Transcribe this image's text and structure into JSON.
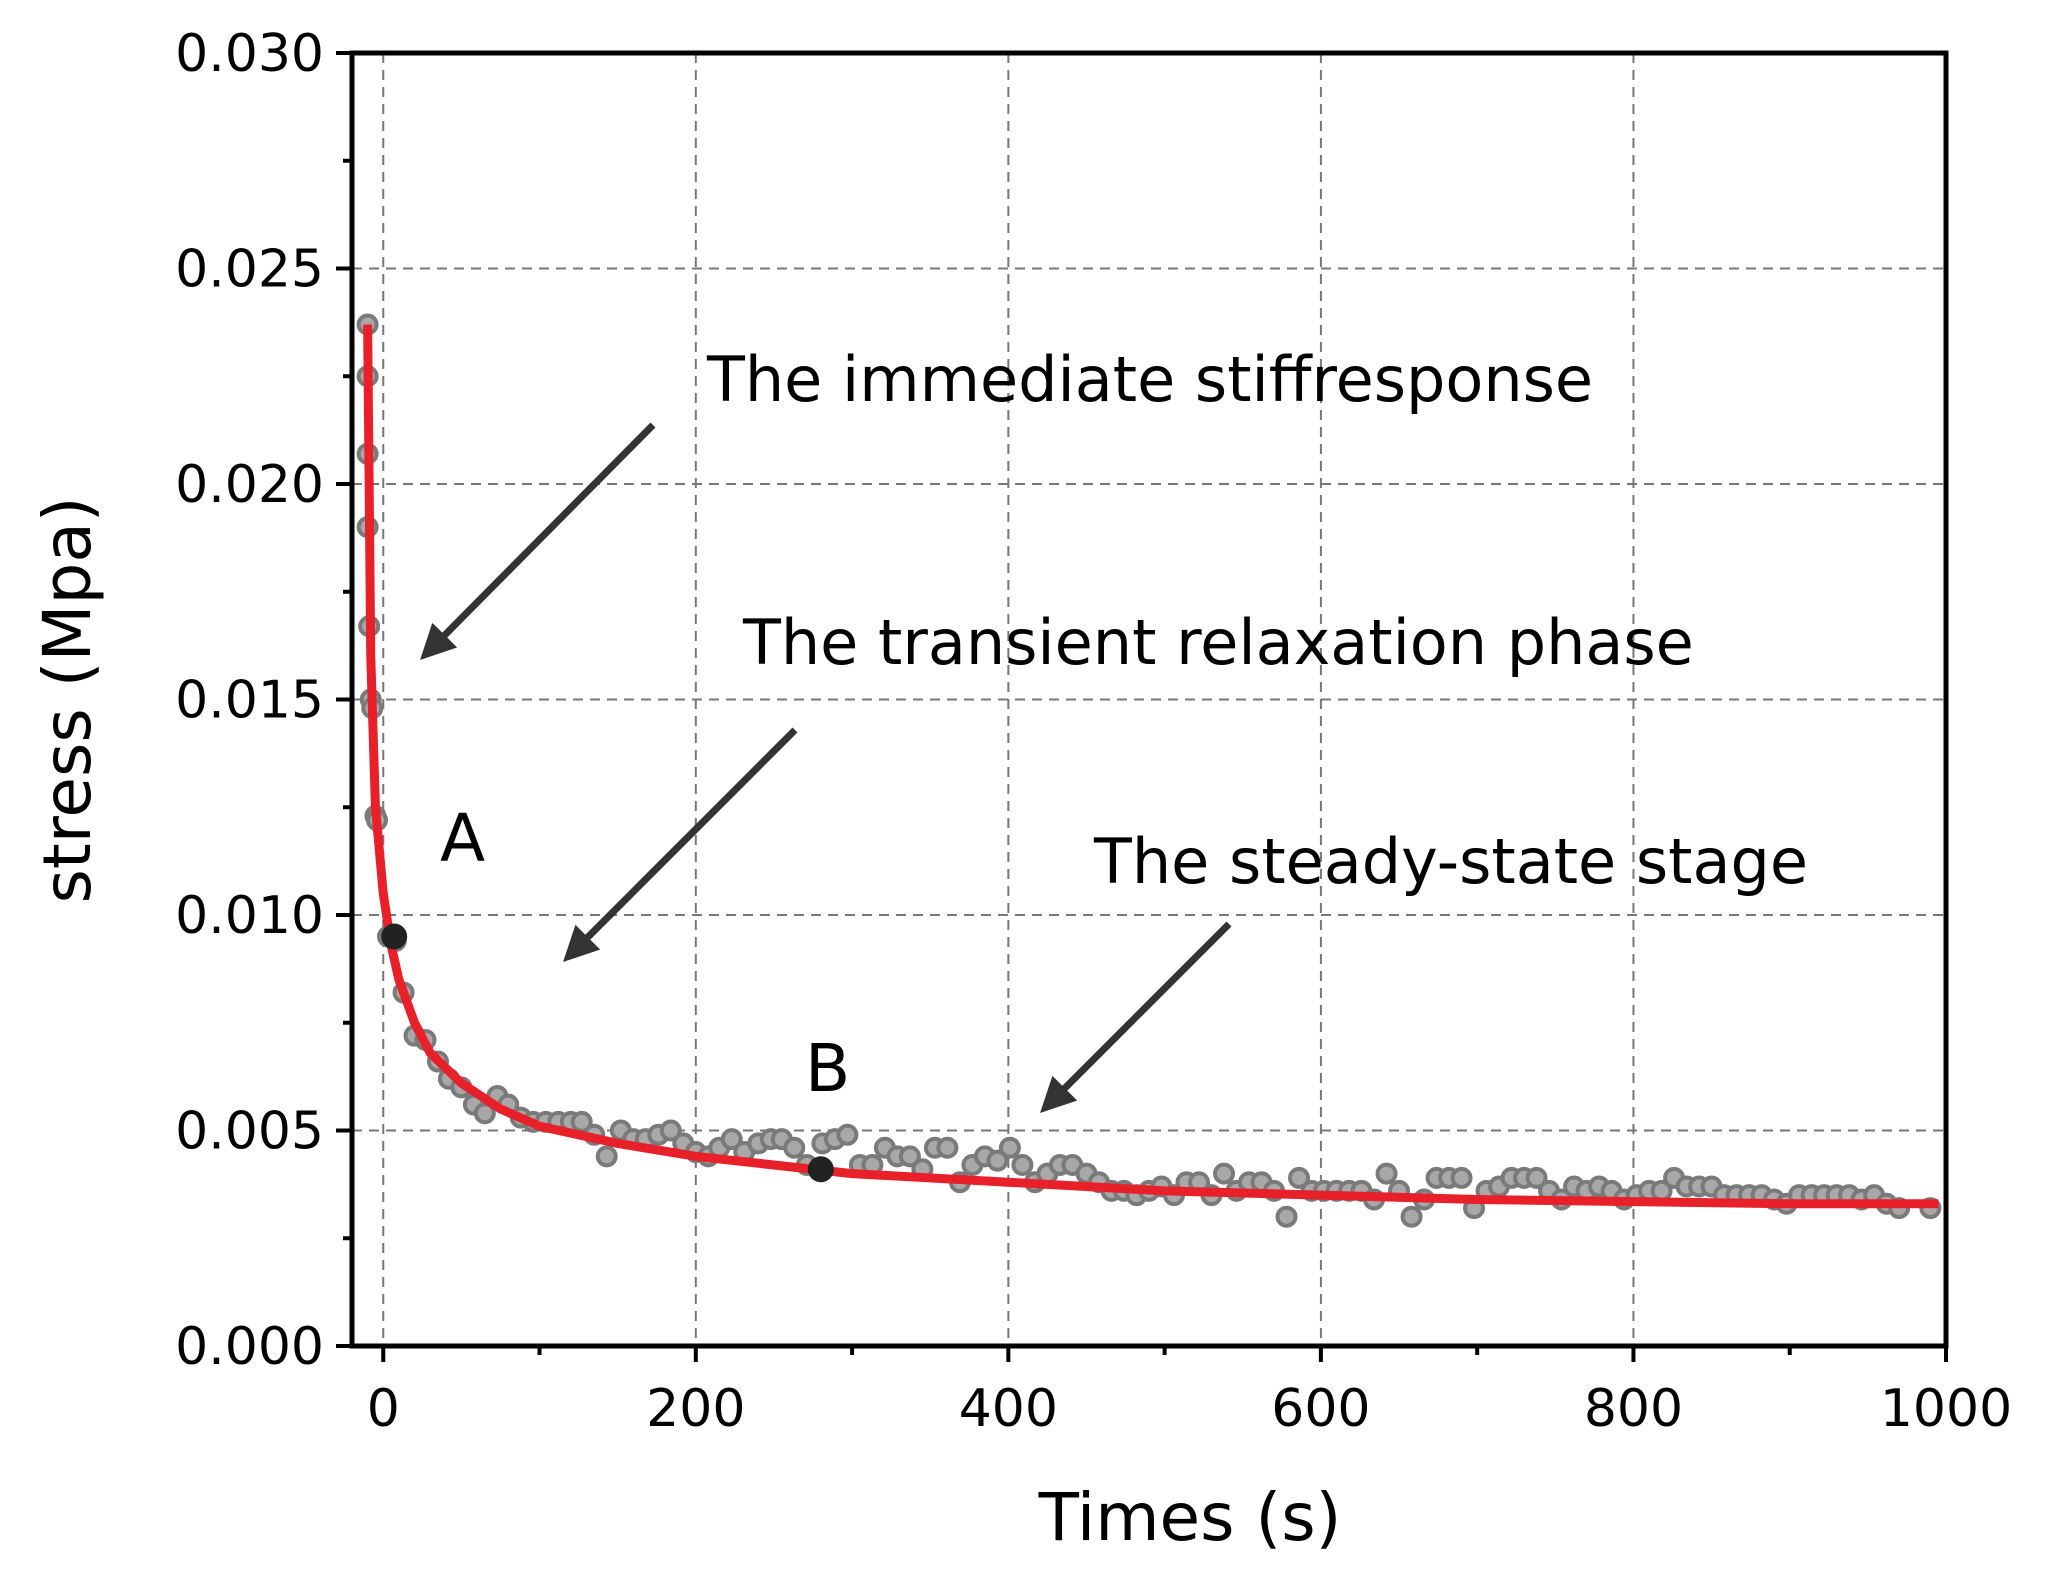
{
  "chart_data": {
    "type": "scatter",
    "xlabel": "Times (s)",
    "ylabel": "stress (Mpa)",
    "xlim": [
      -20,
      1000
    ],
    "ylim": [
      0,
      0.03
    ],
    "xticks": [
      0,
      200,
      400,
      600,
      800,
      1000
    ],
    "xticks_minor": [
      100,
      300,
      500,
      700,
      900
    ],
    "yticks": [
      {
        "value": 0,
        "label": "0.000"
      },
      {
        "value": 0.005,
        "label": "0.005"
      },
      {
        "value": 0.01,
        "label": "0.010"
      },
      {
        "value": 0.015,
        "label": "0.015"
      },
      {
        "value": 0.02,
        "label": "0.020"
      },
      {
        "value": 0.025,
        "label": "0.025"
      },
      {
        "value": 0.03,
        "label": "0.030"
      }
    ],
    "yticks_minor": [
      0.0025,
      0.0075,
      0.0125,
      0.0175,
      0.0225,
      0.0275
    ],
    "grid": true,
    "points": {
      "color": "#a8a8a8",
      "edge": "#7a7a7a",
      "x": [
        -10,
        -10,
        -10,
        -10,
        -9,
        -8,
        -7,
        -5,
        -4,
        3,
        8,
        13,
        20,
        27,
        35,
        42,
        50,
        58,
        65,
        73,
        80,
        88,
        96,
        104,
        112,
        120,
        127,
        135,
        143,
        152,
        160,
        168,
        176,
        184,
        192,
        200,
        208,
        215,
        223,
        231,
        240,
        248,
        255,
        263,
        271,
        281,
        289,
        297,
        305,
        313,
        321,
        329,
        337,
        345,
        353,
        361,
        369,
        377,
        385,
        393,
        401,
        409,
        417,
        425,
        433,
        441,
        450,
        458,
        466,
        474,
        482,
        490,
        498,
        506,
        514,
        522,
        530,
        538,
        546,
        554,
        562,
        570,
        578,
        586,
        594,
        602,
        610,
        618,
        626,
        634,
        642,
        650,
        658,
        666,
        674,
        682,
        690,
        698,
        706,
        714,
        722,
        730,
        738,
        746,
        754,
        762,
        770,
        778,
        786,
        794,
        802,
        810,
        818,
        826,
        834,
        842,
        850,
        858,
        866,
        874,
        882,
        890,
        898,
        906,
        914,
        922,
        930,
        938,
        946,
        954,
        962,
        970,
        990
      ],
      "values": [
        0.0237,
        0.0225,
        0.0207,
        0.019,
        0.0167,
        0.015,
        0.0148,
        0.0123,
        0.0122,
        0.0095,
        0.0094,
        0.0082,
        0.0072,
        0.0071,
        0.0066,
        0.0062,
        0.006,
        0.0056,
        0.0054,
        0.0058,
        0.0056,
        0.0053,
        0.0052,
        0.0052,
        0.0052,
        0.0052,
        0.0052,
        0.0049,
        0.0044,
        0.005,
        0.0048,
        0.0048,
        0.0049,
        0.005,
        0.0047,
        0.0045,
        0.0044,
        0.0046,
        0.0048,
        0.0045,
        0.0047,
        0.0048,
        0.0048,
        0.0046,
        0.0042,
        0.0047,
        0.0048,
        0.0049,
        0.0042,
        0.0042,
        0.0046,
        0.0044,
        0.0044,
        0.0041,
        0.0046,
        0.0046,
        0.0038,
        0.0042,
        0.0044,
        0.0043,
        0.0046,
        0.0042,
        0.0038,
        0.004,
        0.0042,
        0.0042,
        0.004,
        0.0038,
        0.0036,
        0.0036,
        0.0035,
        0.0036,
        0.0037,
        0.0035,
        0.0038,
        0.0038,
        0.0035,
        0.004,
        0.0036,
        0.0038,
        0.0038,
        0.0036,
        0.003,
        0.0039,
        0.0036,
        0.0036,
        0.0036,
        0.0036,
        0.0036,
        0.0034,
        0.004,
        0.0036,
        0.003,
        0.0034,
        0.0039,
        0.0039,
        0.0039,
        0.0032,
        0.0036,
        0.0037,
        0.0039,
        0.0039,
        0.0039,
        0.0036,
        0.0034,
        0.0037,
        0.0036,
        0.0037,
        0.0036,
        0.0034,
        0.0035,
        0.0036,
        0.0036,
        0.0039,
        0.0037,
        0.0037,
        0.0037,
        0.0035,
        0.0035,
        0.0035,
        0.0035,
        0.0034,
        0.0033,
        0.0035,
        0.0035,
        0.0035,
        0.0035,
        0.0035,
        0.0034,
        0.0035,
        0.0033,
        0.0032,
        0.0032
      ]
    },
    "fit_line": {
      "color": "#e8202a",
      "x": [
        -10,
        -8,
        -5,
        0,
        5,
        10,
        20,
        30,
        50,
        75,
        100,
        150,
        200,
        300,
        400,
        500,
        600,
        700,
        800,
        900,
        995
      ],
      "values": [
        0.0237,
        0.016,
        0.0125,
        0.0105,
        0.0093,
        0.0085,
        0.0075,
        0.0068,
        0.0061,
        0.0055,
        0.0051,
        0.0047,
        0.0044,
        0.004,
        0.0038,
        0.0036,
        0.0035,
        0.0034,
        0.00335,
        0.0033,
        0.0033
      ]
    },
    "highlight_points": {
      "color": "#222222",
      "x": [
        7,
        280
      ],
      "values": [
        0.0095,
        0.0041
      ]
    },
    "annotations": [
      "The immediate stiffresponse",
      "The transient relaxation phase",
      "The steady-state stage",
      "A",
      "B"
    ]
  }
}
